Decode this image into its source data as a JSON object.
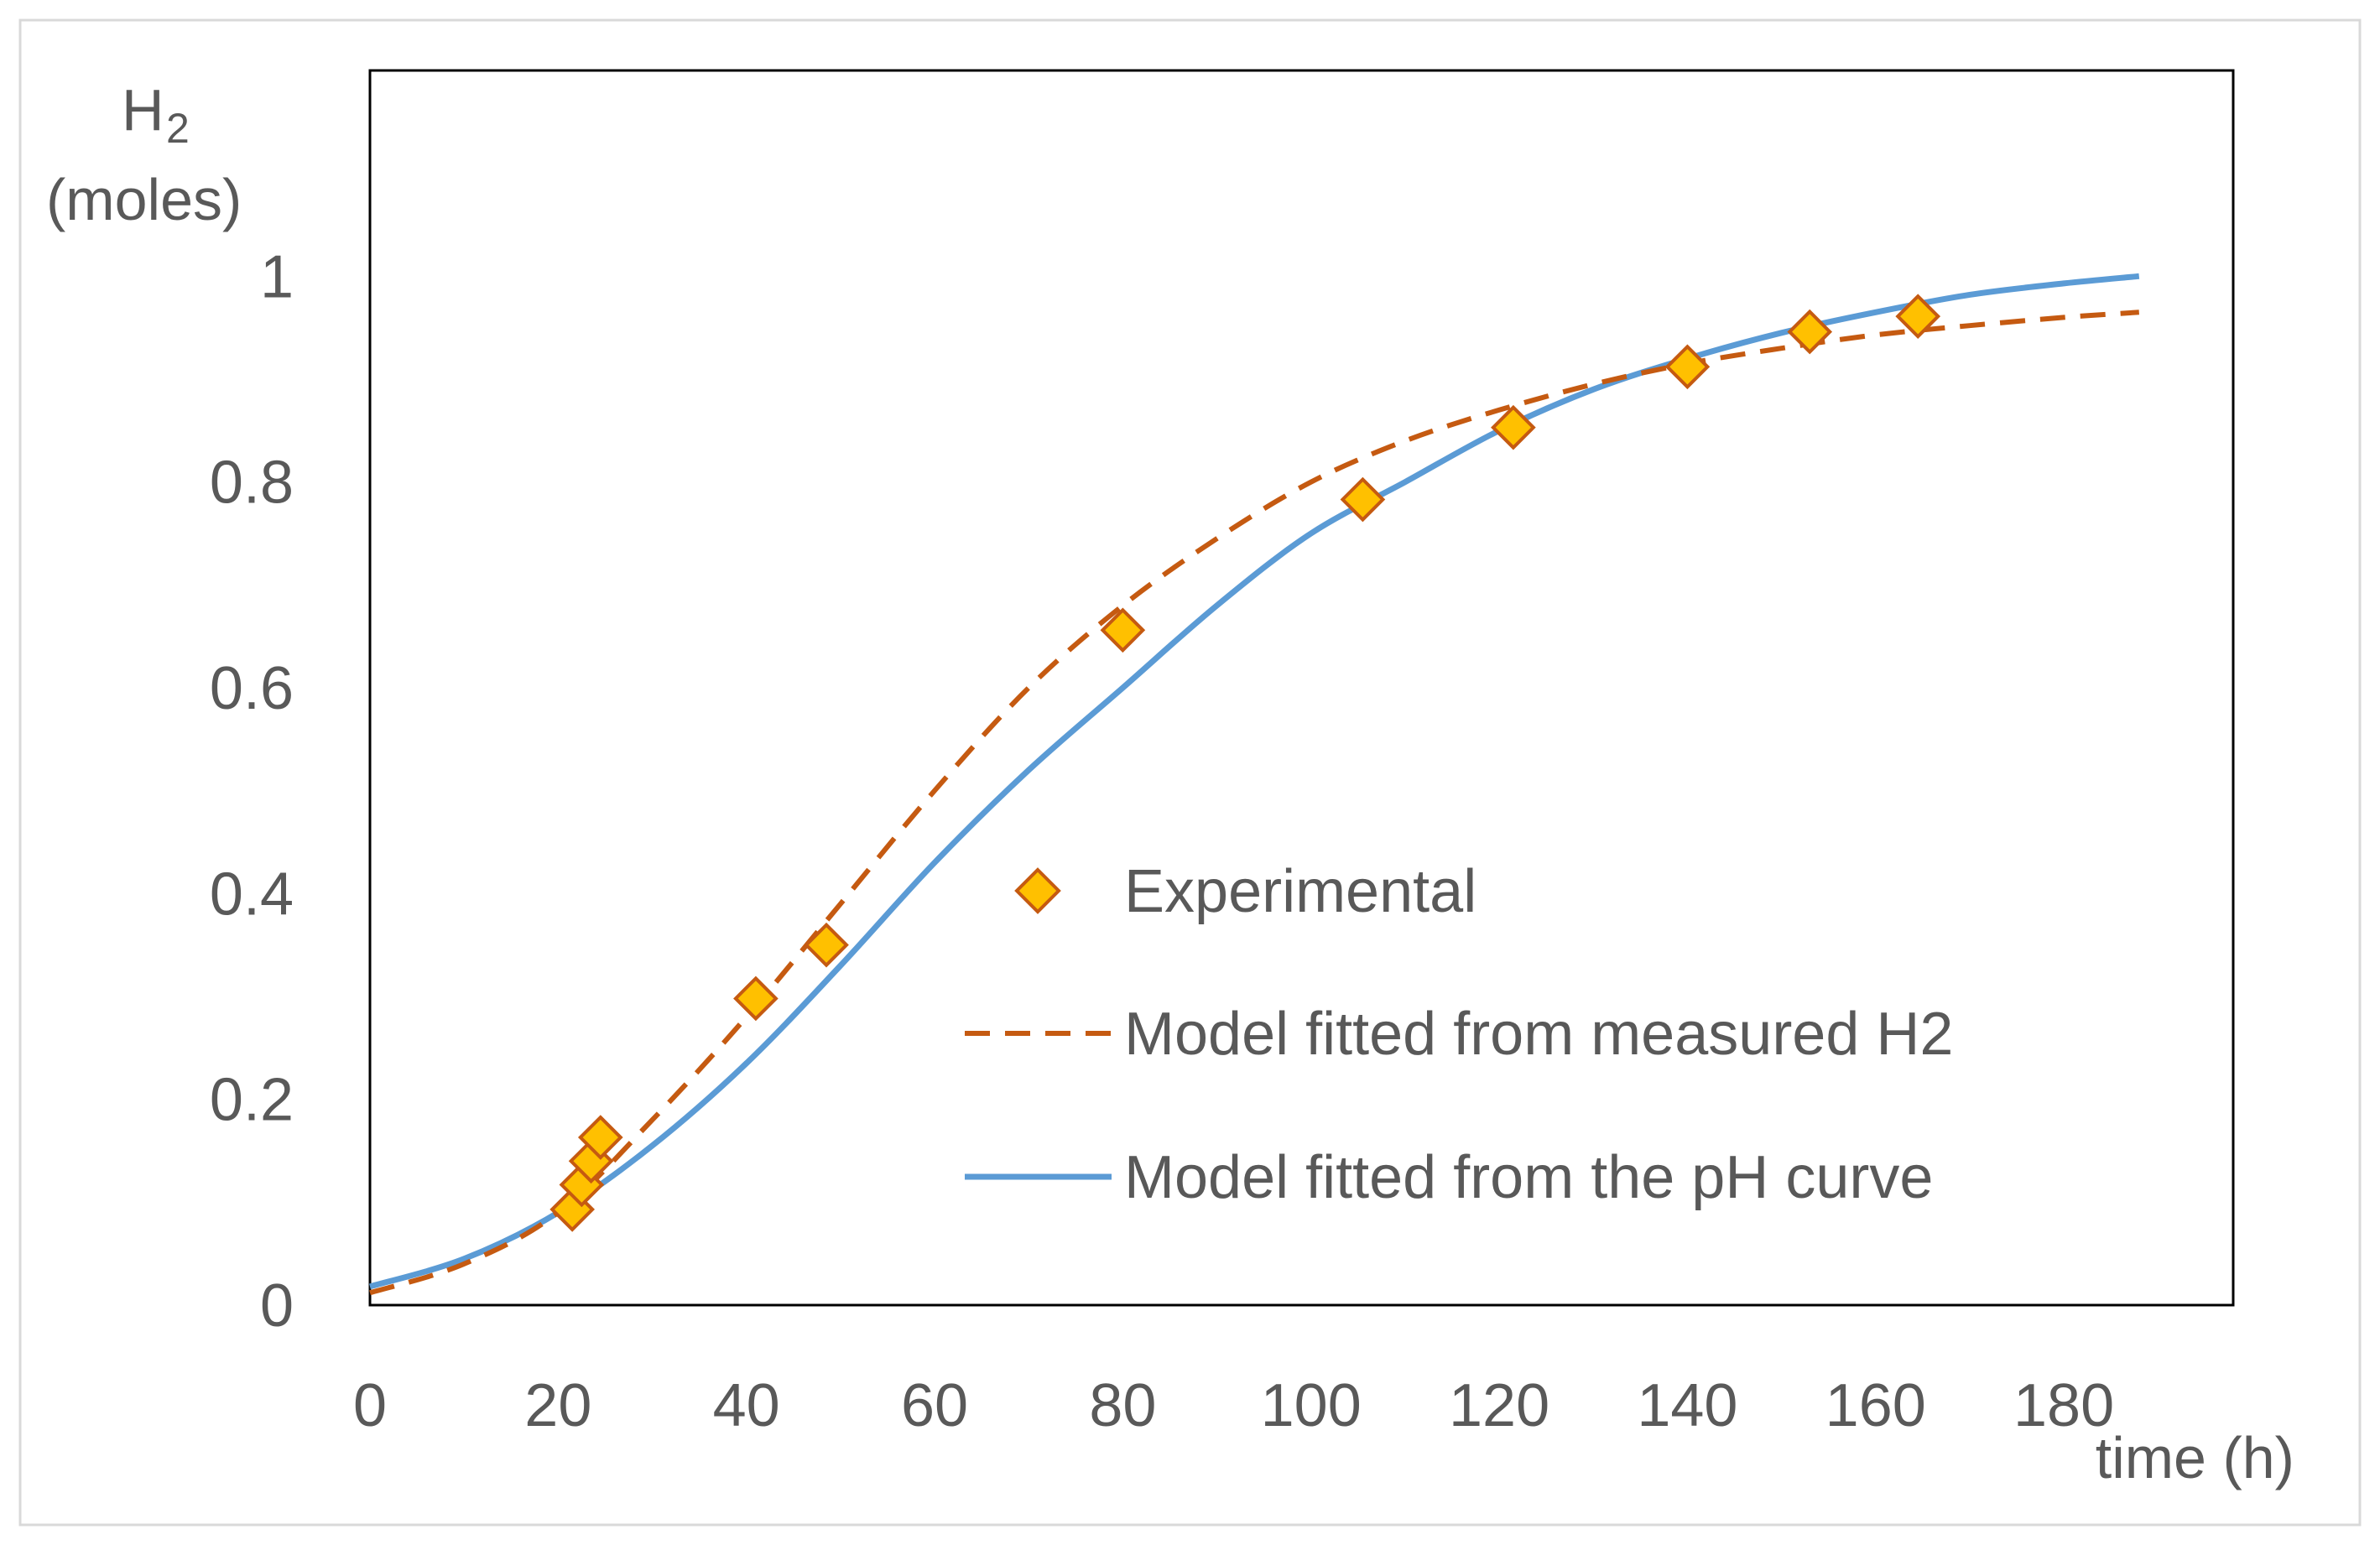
{
  "chart_data": {
    "type": "line",
    "title": "",
    "ylabel_main": "H",
    "ylabel_sub": "2",
    "ylabel_unit": "(moles)",
    "xlabel": "time (h)",
    "xlim": [
      0,
      198
    ],
    "ylim": [
      0,
      1.2
    ],
    "x_ticks": [
      "0",
      "20",
      "40",
      "60",
      "80",
      "100",
      "120",
      "140",
      "160",
      "180"
    ],
    "y_ticks": [
      "0",
      "0.2",
      "0.4",
      "0.6",
      "0.8",
      "1"
    ],
    "x_tick_values": [
      0,
      20,
      40,
      60,
      80,
      100,
      120,
      140,
      160,
      180
    ],
    "y_tick_values": [
      0,
      0.2,
      0.4,
      0.6,
      0.8,
      1
    ],
    "grid": false,
    "legend_position": "lower-right",
    "series": [
      {
        "name": "Experimental",
        "kind": "scatter",
        "marker": "diamond",
        "color": "#FFC000",
        "edge_color": "#C55A11",
        "x": [
          21.5,
          22.5,
          23.5,
          24.5,
          41,
          48.5,
          80,
          105.5,
          121.5,
          140,
          153,
          164.5
        ],
        "y": [
          0.093,
          0.117,
          0.14,
          0.163,
          0.298,
          0.35,
          0.656,
          0.783,
          0.853,
          0.912,
          0.946,
          0.961
        ]
      },
      {
        "name": "Model fitted from measured H2",
        "kind": "line",
        "style": "dashed",
        "color": "#C55A11",
        "x": [
          0,
          10,
          20,
          30,
          40,
          50,
          60,
          70,
          80,
          90,
          100,
          110,
          120,
          130,
          140,
          150,
          160,
          170,
          180,
          188
        ],
        "y": [
          0.012,
          0.04,
          0.09,
          0.18,
          0.28,
          0.39,
          0.5,
          0.6,
          0.68,
          0.745,
          0.8,
          0.84,
          0.87,
          0.895,
          0.915,
          0.93,
          0.943,
          0.952,
          0.96,
          0.965
        ]
      },
      {
        "name": "Model fitted from the pH curve",
        "kind": "line",
        "style": "solid",
        "color": "#5B9BD5",
        "x": [
          0,
          10,
          20,
          30,
          40,
          50,
          60,
          70,
          80,
          90,
          100,
          110,
          120,
          130,
          140,
          150,
          160,
          170,
          180,
          188
        ],
        "y": [
          0.018,
          0.045,
          0.09,
          0.155,
          0.235,
          0.33,
          0.43,
          0.52,
          0.6,
          0.68,
          0.75,
          0.8,
          0.85,
          0.89,
          0.92,
          0.945,
          0.965,
          0.982,
          0.993,
          1.0
        ]
      }
    ]
  }
}
